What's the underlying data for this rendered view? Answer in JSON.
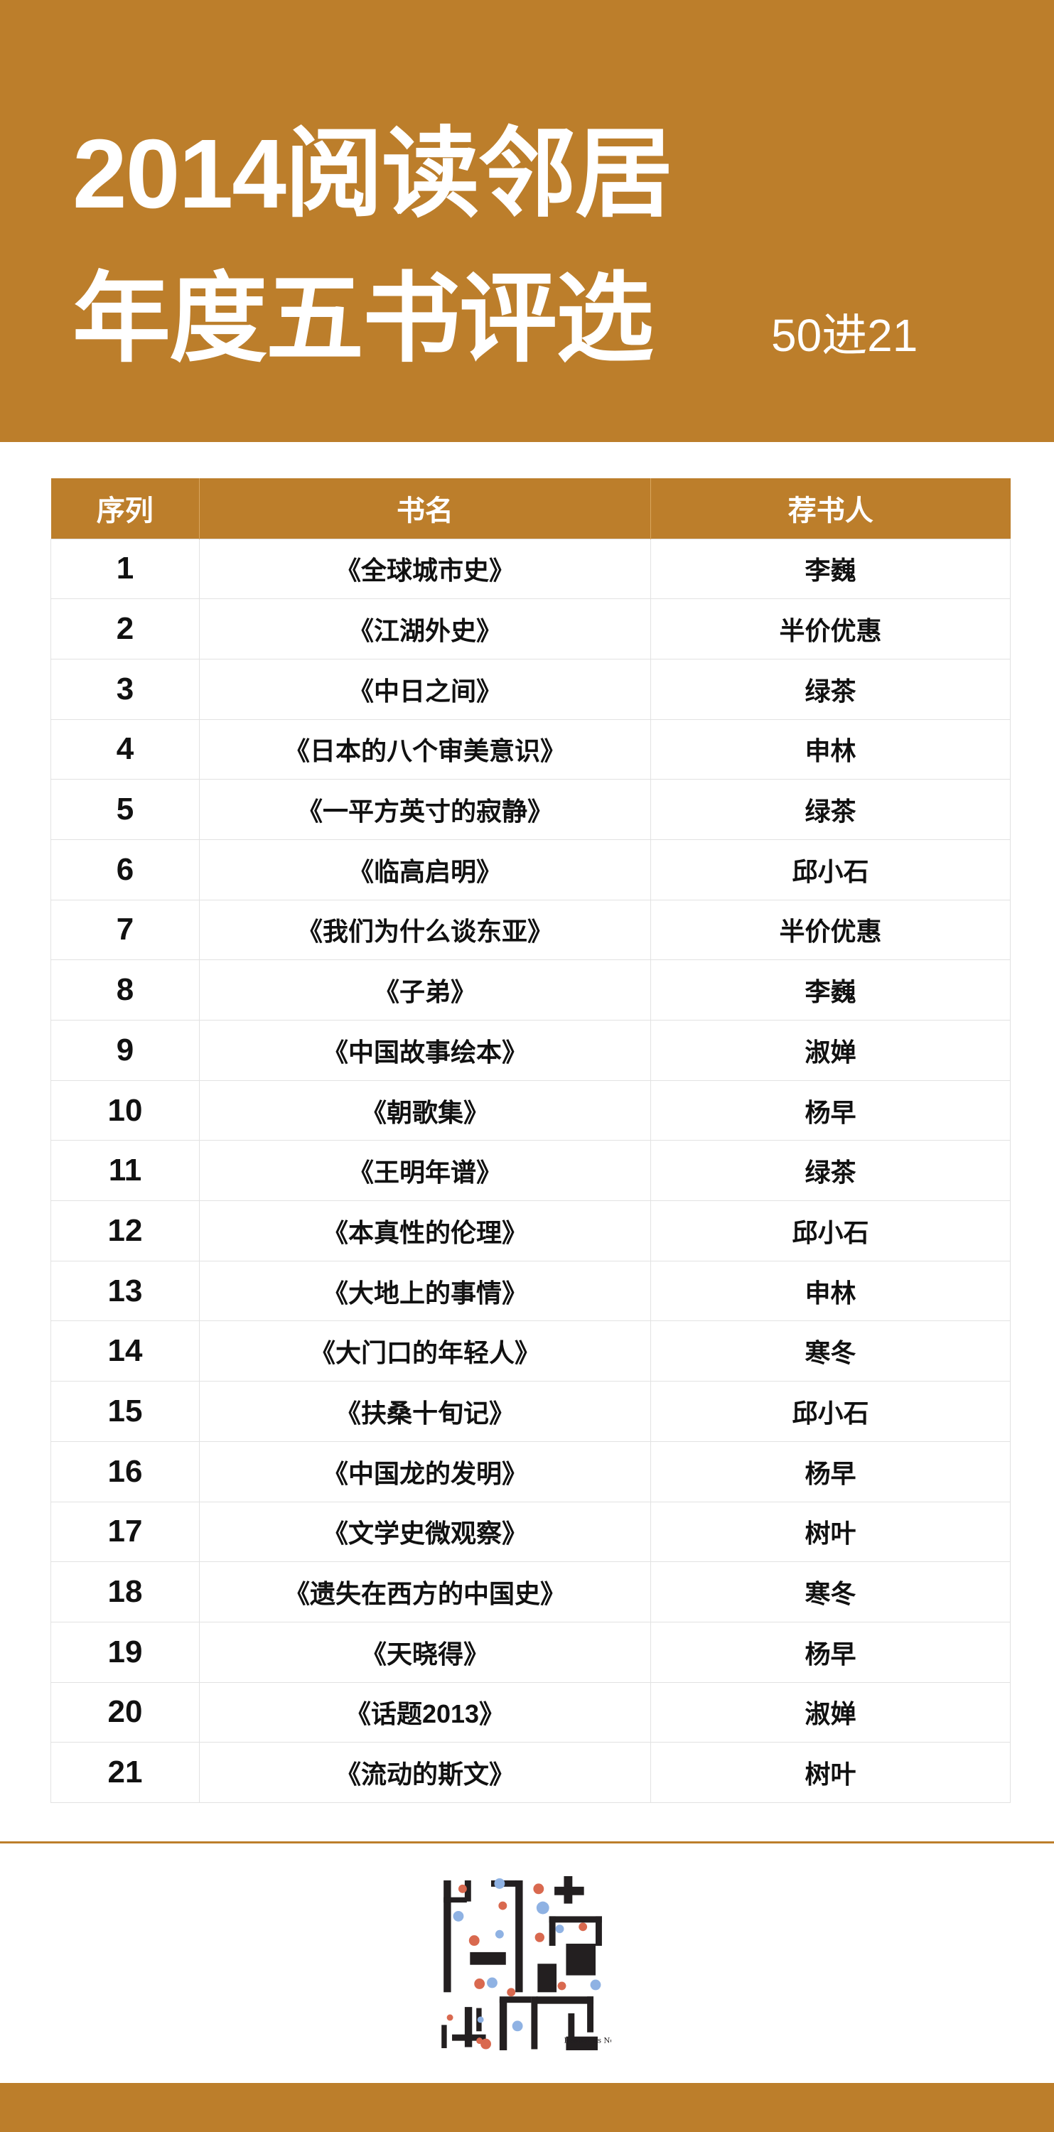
{
  "header": {
    "title_line1": "2014阅读邻居",
    "title_line2": "年度五书评选",
    "subtitle": "50进21"
  },
  "table": {
    "columns": [
      "序列",
      "书名",
      "荐书人"
    ],
    "rows": [
      {
        "no": "1",
        "book": "《全球城市史》",
        "recommender": "李巍"
      },
      {
        "no": "2",
        "book": "《江湖外史》",
        "recommender": "半价优惠"
      },
      {
        "no": "3",
        "book": "《中日之间》",
        "recommender": "绿茶"
      },
      {
        "no": "4",
        "book": "《日本的八个审美意识》",
        "recommender": "申林"
      },
      {
        "no": "5",
        "book": "《一平方英寸的寂静》",
        "recommender": "绿茶"
      },
      {
        "no": "6",
        "book": "《临高启明》",
        "recommender": "邱小石"
      },
      {
        "no": "7",
        "book": "《我们为什么谈东亚》",
        "recommender": "半价优惠"
      },
      {
        "no": "8",
        "book": "《子弟》",
        "recommender": "李巍"
      },
      {
        "no": "9",
        "book": "《中国故事绘本》",
        "recommender": "淑婵"
      },
      {
        "no": "10",
        "book": "《朝歌集》",
        "recommender": "杨早"
      },
      {
        "no": "11",
        "book": "《王明年谱》",
        "recommender": "绿茶"
      },
      {
        "no": "12",
        "book": "《本真性的伦理》",
        "recommender": "邱小石"
      },
      {
        "no": "13",
        "book": "《大地上的事情》",
        "recommender": "申林"
      },
      {
        "no": "14",
        "book": "《大门口的年轻人》",
        "recommender": "寒冬"
      },
      {
        "no": "15",
        "book": "《扶桑十旬记》",
        "recommender": "邱小石"
      },
      {
        "no": "16",
        "book": "《中国龙的发明》",
        "recommender": "杨早"
      },
      {
        "no": "17",
        "book": "《文学史微观察》",
        "recommender": "树叶"
      },
      {
        "no": "18",
        "book": "《遗失在西方的中国史》",
        "recommender": "寒冬"
      },
      {
        "no": "19",
        "book": "《天晓得》",
        "recommender": "杨早"
      },
      {
        "no": "20",
        "book": "《话题2013》",
        "recommender": "淑婵"
      },
      {
        "no": "21",
        "book": "《流动的斯文》",
        "recommender": "树叶"
      }
    ]
  },
  "logo": {
    "text": "Reader as Neighbor"
  },
  "colors": {
    "brand": "#bc7e2b",
    "dot_red": "#d9694f",
    "dot_blue": "#8fb2e3"
  }
}
